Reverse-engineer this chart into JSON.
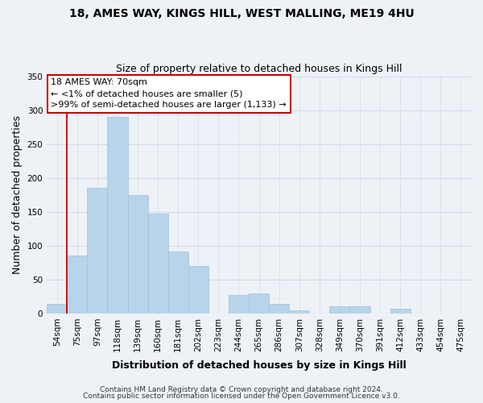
{
  "title_line1": "18, AMES WAY, KINGS HILL, WEST MALLING, ME19 4HU",
  "title_line2": "Size of property relative to detached houses in Kings Hill",
  "xlabel": "Distribution of detached houses by size in Kings Hill",
  "ylabel": "Number of detached properties",
  "bar_labels": [
    "54sqm",
    "75sqm",
    "97sqm",
    "118sqm",
    "139sqm",
    "160sqm",
    "181sqm",
    "202sqm",
    "223sqm",
    "244sqm",
    "265sqm",
    "286sqm",
    "307sqm",
    "328sqm",
    "349sqm",
    "370sqm",
    "391sqm",
    "412sqm",
    "433sqm",
    "454sqm",
    "475sqm"
  ],
  "bar_values": [
    14,
    85,
    185,
    290,
    175,
    147,
    91,
    70,
    0,
    27,
    30,
    14,
    5,
    0,
    10,
    10,
    0,
    7,
    0,
    0,
    0
  ],
  "bar_color": "#b8d4ea",
  "bar_edgecolor": "#a0c0dc",
  "annotation_title": "18 AMES WAY: 70sqm",
  "annotation_line2": "← <1% of detached houses are smaller (5)",
  "annotation_line3": ">99% of semi-detached houses are larger (1,133) →",
  "annotation_box_facecolor": "#ffffff",
  "annotation_box_edgecolor": "#cc0000",
  "vline_color": "#cc0000",
  "vline_x_data": 0.5,
  "ylim": [
    0,
    350
  ],
  "yticks": [
    0,
    50,
    100,
    150,
    200,
    250,
    300,
    350
  ],
  "footer_line1": "Contains HM Land Registry data © Crown copyright and database right 2024.",
  "footer_line2": "Contains public sector information licensed under the Open Government Licence v3.0.",
  "bg_color": "#eef2f7",
  "plot_bg_color": "#eef2f7",
  "grid_color": "#d0dde8",
  "title_fontsize": 10,
  "subtitle_fontsize": 9,
  "axis_label_fontsize": 9,
  "tick_fontsize": 7.5
}
